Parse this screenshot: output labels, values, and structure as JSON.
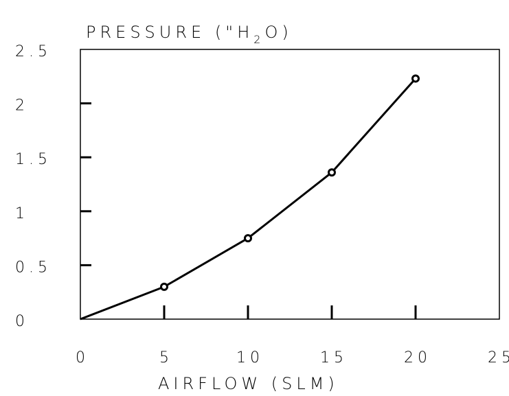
{
  "chart_data": {
    "type": "line",
    "title": "PRESSURE (\"H2O)",
    "title_parts": {
      "before": "PRESSURE (\"H",
      "sub": "2",
      "after": "O)"
    },
    "xlabel": "AIRFLOW (SLM)",
    "ylabel": "",
    "xlim": [
      0,
      25
    ],
    "ylim": [
      0,
      2.5
    ],
    "x_ticks": [
      0,
      5,
      10,
      15,
      20,
      25
    ],
    "x_tick_labels": [
      "0",
      "5",
      "10",
      "15",
      "20",
      "25"
    ],
    "y_ticks": [
      0,
      0.5,
      1,
      1.5,
      2,
      2.5
    ],
    "y_tick_labels": [
      "0",
      "0.5",
      "1",
      "1.5",
      "2",
      "2.5"
    ],
    "grid": false,
    "series": [
      {
        "x": [
          0,
          5,
          10,
          15,
          20
        ],
        "y": [
          0,
          0.3,
          0.75,
          1.36,
          2.23
        ],
        "color": "#000000",
        "marker": "circle"
      }
    ]
  }
}
